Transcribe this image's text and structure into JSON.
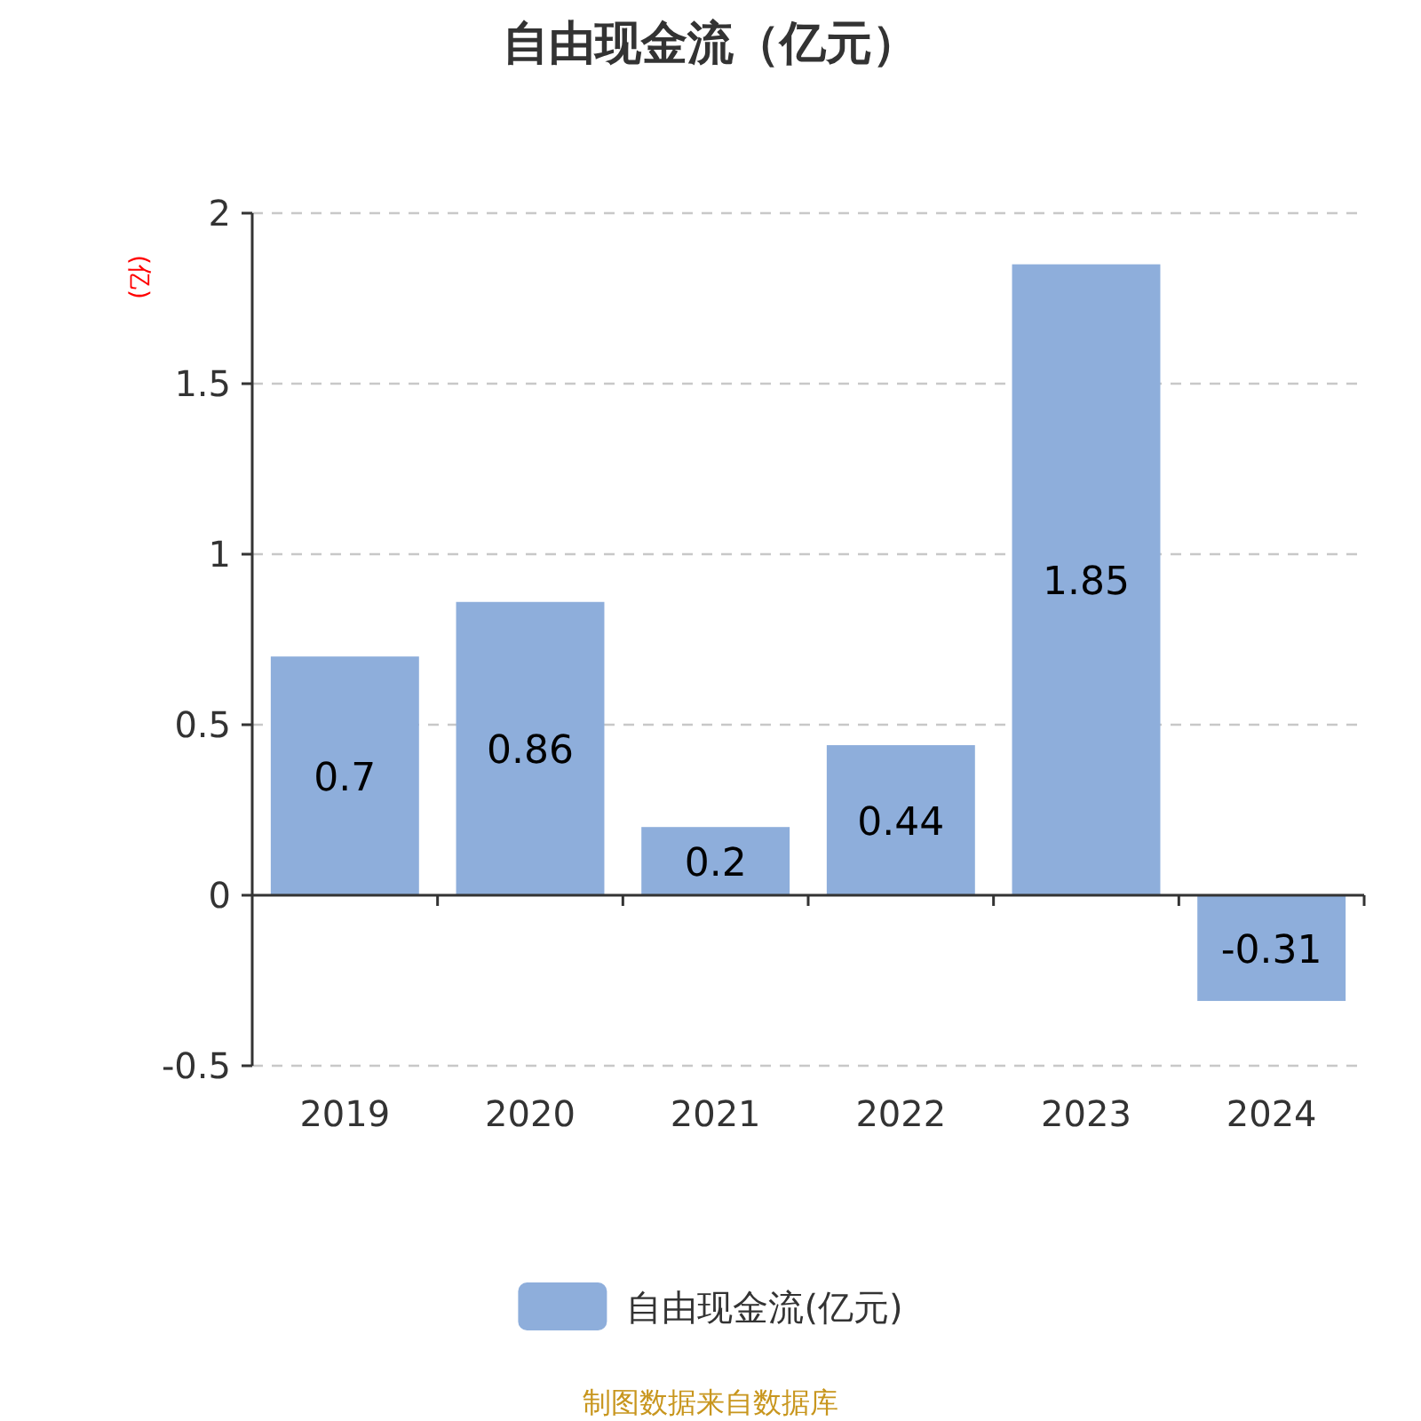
{
  "chart_data": {
    "type": "bar",
    "title": "自由现金流（亿元）",
    "ylabel": "(亿)",
    "categories": [
      "2019",
      "2020",
      "2021",
      "2022",
      "2023",
      "2024"
    ],
    "series": [
      {
        "name": "自由现金流(亿元)",
        "color": "#8eaedb",
        "values": [
          0.7,
          0.86,
          0.2,
          0.44,
          1.85,
          -0.31
        ]
      }
    ],
    "ylim": [
      -0.5,
      2
    ],
    "yticks": [
      -0.5,
      0,
      0.5,
      1,
      1.5,
      2
    ],
    "grid": "y",
    "legend": "bottom",
    "data_labels": true,
    "annotations": [
      "制图数据来自数据库"
    ]
  }
}
